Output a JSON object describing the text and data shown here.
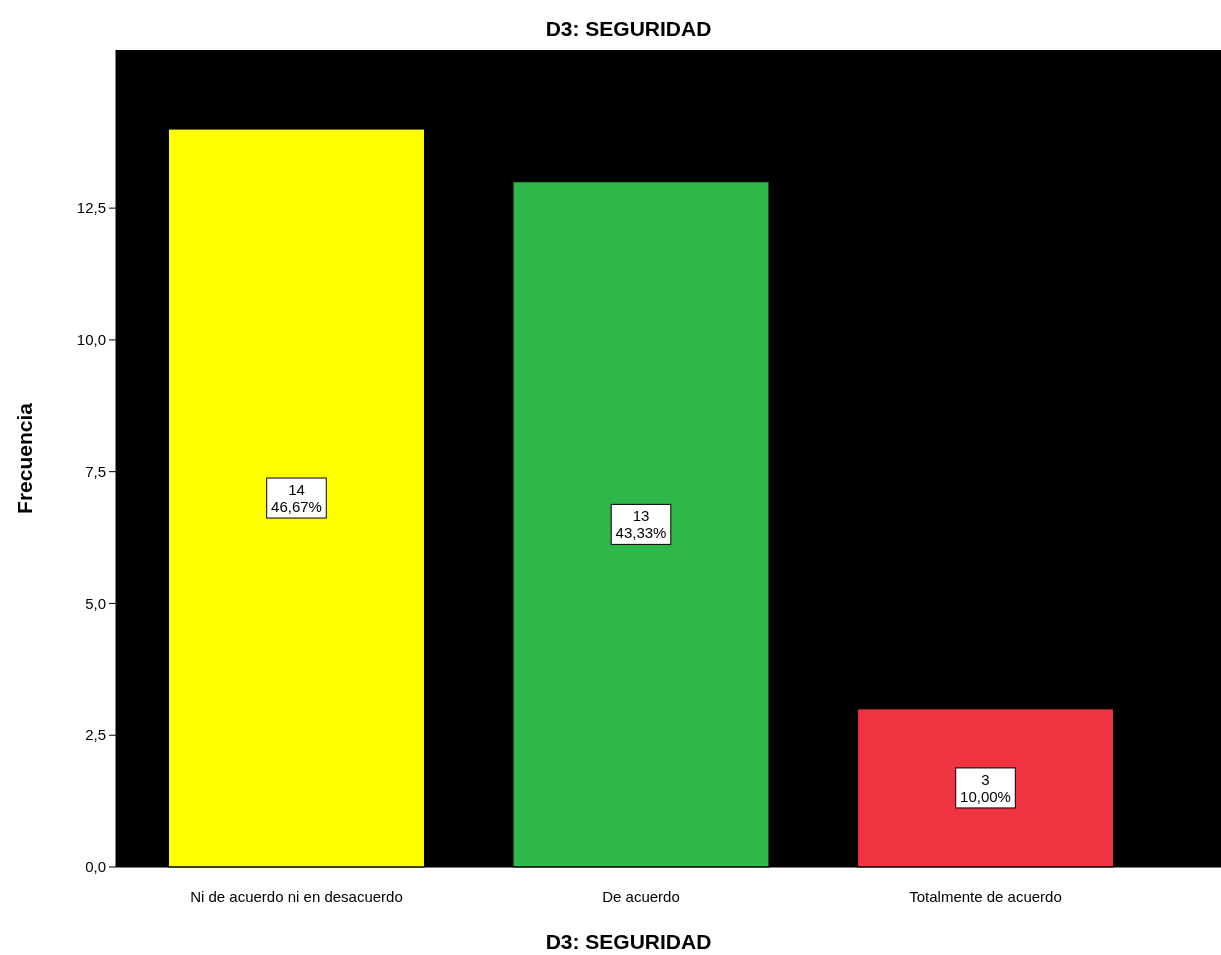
{
  "chart_data": {
    "type": "bar",
    "title": "D3: SEGURIDAD",
    "xlabel": "D3: SEGURIDAD",
    "ylabel": "Frecuencia",
    "categories": [
      "Ni de acuerdo ni en desacuerdo",
      "De acuerdo",
      "Totalmente de acuerdo"
    ],
    "values": [
      14,
      13,
      3
    ],
    "colors": [
      "#ffff00",
      "#2eb84a",
      "#ef3340"
    ],
    "value_labels": [
      "14\n46,67%",
      "13\n43,33%",
      "3\n10,00%"
    ],
    "ylim": [
      0,
      15.5
    ],
    "yticks": [
      {
        "value": 0,
        "label": "0,0"
      },
      {
        "value": 2.5,
        "label": "2,5"
      },
      {
        "value": 5,
        "label": "5,0"
      },
      {
        "value": 7.5,
        "label": "7,5"
      },
      {
        "value": 10,
        "label": "10,0"
      },
      {
        "value": 12.5,
        "label": "12,5"
      }
    ],
    "grid": false
  }
}
